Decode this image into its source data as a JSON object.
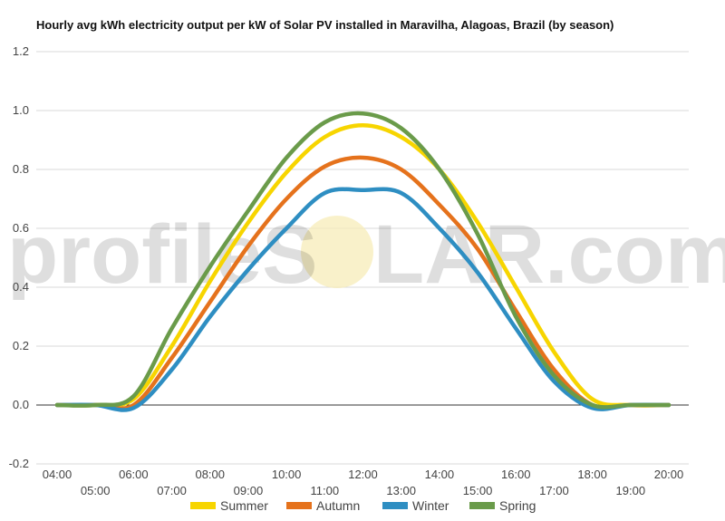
{
  "chart_data": {
    "type": "line",
    "title": "Hourly avg kWh electricity output per kW of Solar PV installed in Maravilha, Alagoas, Brazil (by season)",
    "xlabel": "",
    "ylabel": "",
    "ylim": [
      -0.2,
      1.2
    ],
    "yticks": [
      "-0.2",
      "0.0",
      "0.2",
      "0.4",
      "0.6",
      "0.8",
      "1.0",
      "1.2"
    ],
    "grid": true,
    "legend_position": "bottom",
    "x": [
      "04:00",
      "05:00",
      "06:00",
      "07:00",
      "08:00",
      "09:00",
      "10:00",
      "11:00",
      "12:00",
      "13:00",
      "14:00",
      "15:00",
      "16:00",
      "17:00",
      "18:00",
      "19:00",
      "20:00"
    ],
    "series": [
      {
        "name": "Summer",
        "color": "#f7d500",
        "values": [
          0,
          0,
          0.02,
          0.2,
          0.42,
          0.62,
          0.79,
          0.91,
          0.95,
          0.91,
          0.8,
          0.62,
          0.4,
          0.18,
          0.02,
          0,
          0
        ]
      },
      {
        "name": "Autumn",
        "color": "#e5721c",
        "values": [
          0,
          0,
          0,
          0.16,
          0.35,
          0.54,
          0.7,
          0.81,
          0.84,
          0.8,
          0.68,
          0.53,
          0.32,
          0.12,
          0,
          0,
          0
        ]
      },
      {
        "name": "Winter",
        "color": "#2e8ec2",
        "values": [
          0,
          0,
          -0.01,
          0.12,
          0.3,
          0.46,
          0.6,
          0.72,
          0.73,
          0.72,
          0.6,
          0.45,
          0.26,
          0.08,
          -0.01,
          0,
          0
        ]
      },
      {
        "name": "Spring",
        "color": "#6a9b4a",
        "values": [
          0,
          0,
          0.03,
          0.26,
          0.47,
          0.66,
          0.84,
          0.96,
          0.99,
          0.94,
          0.8,
          0.58,
          0.3,
          0.1,
          0,
          0,
          0
        ]
      }
    ]
  },
  "watermark": {
    "left_text": "profileS",
    "right_text": "LAR.com",
    "sun_color": "#f7ecb8"
  }
}
